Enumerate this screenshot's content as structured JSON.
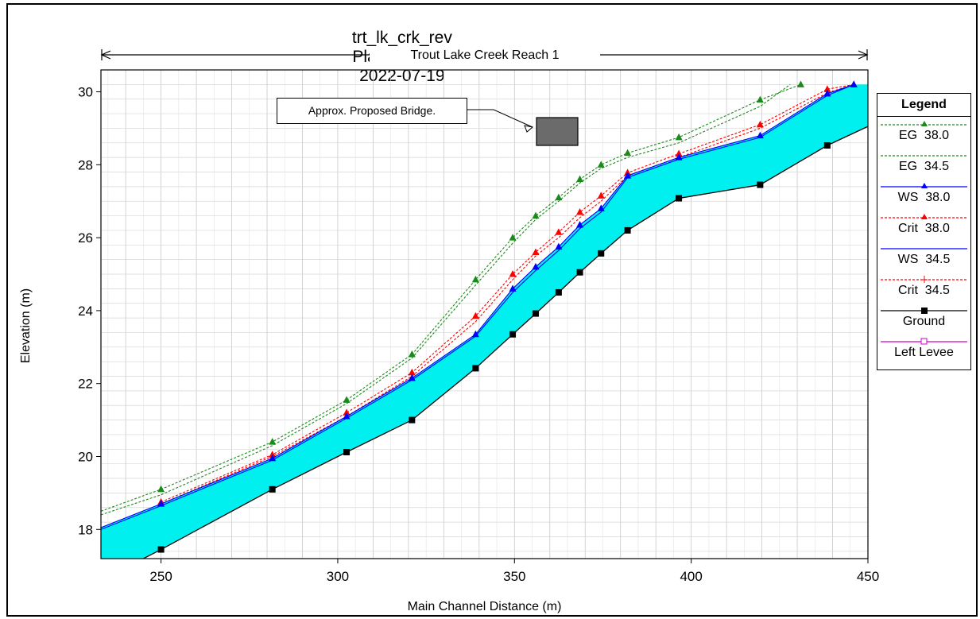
{
  "title_parts": [
    "trt_lk_crk_rev",
    "Plan: Plan 22",
    "2022-07-19"
  ],
  "reach_label": "Trout Lake Creek Reach 1",
  "annotation": "Approx. Proposed Bridge.",
  "legend": {
    "title": "Legend",
    "items": [
      {
        "label": "EG  38.0",
        "color": "#1a8a1a",
        "marker": "triangle",
        "dash": true
      },
      {
        "label": "EG  34.5",
        "color": "#1a8a1a",
        "marker": "none",
        "dash": true
      },
      {
        "label": "WS  38.0",
        "color": "#0000ff",
        "marker": "triangle",
        "dash": false
      },
      {
        "label": "Crit  38.0",
        "color": "#ff0000",
        "marker": "triangle",
        "dash": true
      },
      {
        "label": "WS  34.5",
        "color": "#0000ff",
        "marker": "none",
        "dash": false
      },
      {
        "label": "Crit  34.5",
        "color": "#ff0000",
        "marker": "plus",
        "dash": true
      },
      {
        "label": "Ground",
        "color": "#000000",
        "marker": "square",
        "dash": false
      },
      {
        "label": "Left Levee",
        "color": "#cc00cc",
        "marker": "open-square",
        "dash": false
      }
    ]
  },
  "chart_data": {
    "type": "line",
    "title": "trt_lk_crk_rev     Plan: Plan 22     2022-07-19",
    "xlabel": "Main Channel Distance (m)",
    "ylabel": "Elevation (m)",
    "xlim": [
      233,
      450
    ],
    "ylim": [
      17.2,
      30.6
    ],
    "xticks": [
      250,
      300,
      350,
      400,
      450
    ],
    "yticks": [
      18,
      20,
      22,
      24,
      26,
      28,
      30
    ],
    "grid": true,
    "legend_position": "right",
    "water_fill_color": "#00f0f0",
    "series": [
      {
        "name": "EG 38.0",
        "x": [
          233,
          250,
          281.5,
          302.5,
          321,
          339,
          349.5,
          356,
          362.5,
          368.5,
          374.5,
          382,
          396.5,
          419.5,
          431
        ],
        "y": [
          18.5,
          19.1,
          20.4,
          21.55,
          22.8,
          24.85,
          26.0,
          26.6,
          27.1,
          27.6,
          28.0,
          28.32,
          28.75,
          29.78,
          30.2
        ]
      },
      {
        "name": "EG 34.5",
        "x": [
          233,
          250,
          281.5,
          302.5,
          321,
          339,
          349.5,
          356,
          362.5,
          368.5,
          374.5,
          382,
          396.5,
          419.5,
          428
        ],
        "y": [
          18.4,
          18.95,
          20.3,
          21.45,
          22.7,
          24.7,
          25.85,
          26.5,
          27.0,
          27.5,
          27.9,
          28.2,
          28.6,
          29.6,
          30.2
        ]
      },
      {
        "name": "WS 38.0",
        "x": [
          233,
          250,
          281.5,
          302.5,
          321,
          339,
          349.5,
          356,
          362.5,
          368.5,
          374.5,
          382,
          396.5,
          419.5,
          438.5,
          446
        ],
        "y": [
          18.05,
          18.7,
          19.95,
          21.1,
          22.15,
          23.35,
          24.6,
          25.2,
          25.75,
          26.35,
          26.8,
          27.7,
          28.2,
          28.8,
          29.95,
          30.2
        ]
      },
      {
        "name": "Crit 38.0",
        "x": [
          250,
          281.5,
          302.5,
          321,
          339,
          349.5,
          356,
          362.5,
          368.5,
          374.5,
          382,
          396.5,
          419.5,
          438.5,
          446
        ],
        "y": [
          18.75,
          20.05,
          21.2,
          22.3,
          23.85,
          25.0,
          25.6,
          26.15,
          26.7,
          27.15,
          27.78,
          28.3,
          29.1,
          30.07,
          30.2
        ]
      },
      {
        "name": "WS 34.5",
        "x": [
          233,
          250,
          281.5,
          302.5,
          321,
          339,
          349.5,
          356,
          362.5,
          368.5,
          374.5,
          382,
          396.5,
          419.5,
          438.5,
          446
        ],
        "y": [
          18.0,
          18.65,
          19.9,
          21.05,
          22.1,
          23.3,
          24.5,
          25.1,
          25.65,
          26.25,
          26.7,
          27.65,
          28.15,
          28.75,
          29.9,
          30.2
        ]
      },
      {
        "name": "Crit 34.5",
        "x": [
          250,
          281.5,
          302.5,
          321,
          339,
          349.5,
          356,
          362.5,
          368.5,
          374.5,
          382,
          396.5,
          419.5,
          438.5,
          446
        ],
        "y": [
          18.7,
          20.0,
          21.1,
          22.2,
          23.7,
          24.85,
          25.5,
          26.0,
          26.55,
          27.0,
          27.7,
          28.2,
          29.0,
          29.97,
          30.2
        ]
      },
      {
        "name": "Ground",
        "x": [
          233,
          250,
          281.5,
          302.5,
          321,
          339,
          349.5,
          356,
          362.5,
          368.5,
          374.5,
          382,
          396.5,
          419.5,
          438.5,
          450
        ],
        "y": [
          16.6,
          17.45,
          19.1,
          20.12,
          21.0,
          22.42,
          23.35,
          23.92,
          24.5,
          25.05,
          25.57,
          26.2,
          27.08,
          27.45,
          28.53,
          29.05
        ]
      }
    ]
  }
}
